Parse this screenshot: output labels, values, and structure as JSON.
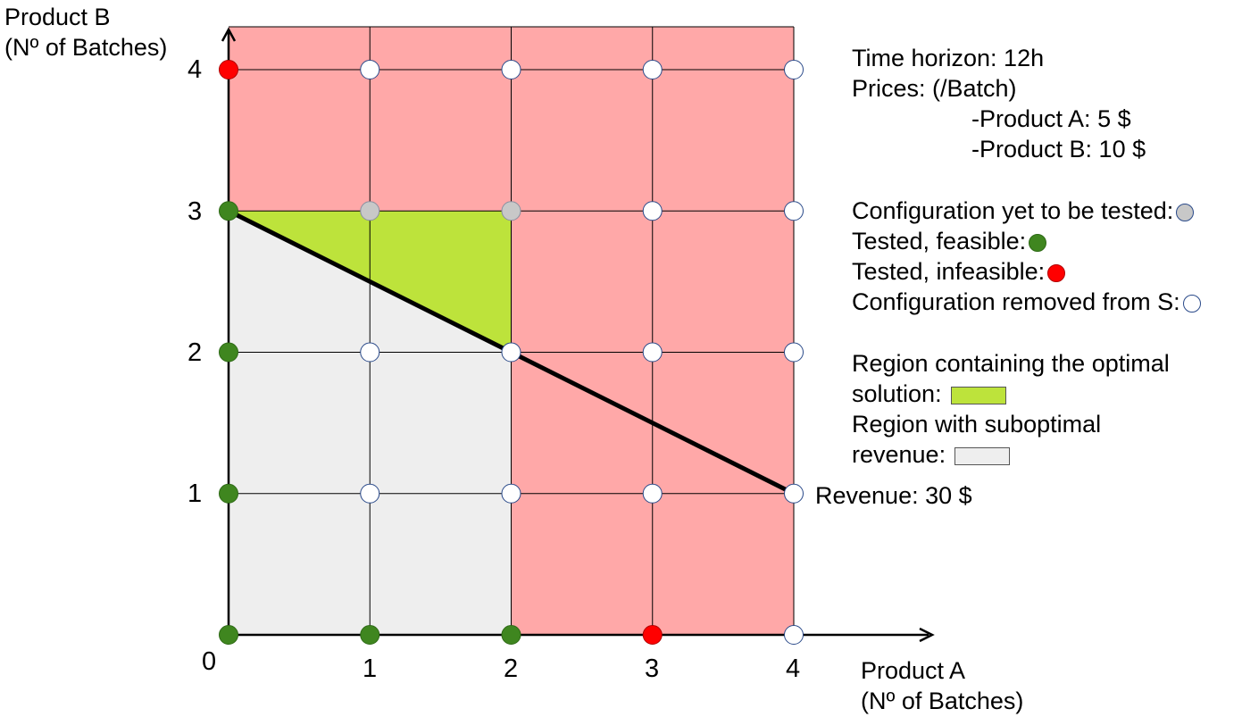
{
  "axes": {
    "y_title_line1": "Product B",
    "y_title_line2": "(Nº of Batches)",
    "x_title_line1": "Product A",
    "x_title_line2": "(Nº of Batches)",
    "x_ticks": [
      "0",
      "1",
      "2",
      "3",
      "4"
    ],
    "y_ticks": [
      "1",
      "2",
      "3",
      "4"
    ]
  },
  "info": {
    "time_horizon": "Time horizon: 12h",
    "prices_title": "Prices: (/Batch)",
    "price_a": "-Product A: 5 $",
    "price_b": "-Product B: 10 $"
  },
  "legend": {
    "untested": "Configuration yet to be tested:",
    "feasible": "Tested, feasible:",
    "infeasible": "Tested, infeasible:",
    "removed": "Configuration removed from S:",
    "optimal_line1": "Region containing the optimal",
    "optimal_line2": "solution:",
    "suboptimal_line1": "Region with suboptimal",
    "suboptimal_line2": "revenue:"
  },
  "revenue_label": "Revenue: 30 $",
  "colors": {
    "infeasible_region": "#ffa8a8",
    "optimal_region": "#bde33b",
    "suboptimal_region": "#eeeeee",
    "feasible_dot": "#3f861f",
    "infeasible_dot": "#ff0000",
    "untested_dot": "#c8c8c8",
    "removed_dot": "#ffffff"
  },
  "grid": {
    "x_max": 4,
    "y_max": 4
  },
  "revenue_line": {
    "from": [
      0,
      3
    ],
    "to": [
      4,
      1
    ]
  },
  "points": [
    {
      "a": 0,
      "b": 0,
      "state": "feasible"
    },
    {
      "a": 1,
      "b": 0,
      "state": "feasible"
    },
    {
      "a": 2,
      "b": 0,
      "state": "feasible"
    },
    {
      "a": 3,
      "b": 0,
      "state": "infeasible"
    },
    {
      "a": 4,
      "b": 0,
      "state": "removed"
    },
    {
      "a": 0,
      "b": 1,
      "state": "feasible"
    },
    {
      "a": 1,
      "b": 1,
      "state": "removed"
    },
    {
      "a": 2,
      "b": 1,
      "state": "removed"
    },
    {
      "a": 3,
      "b": 1,
      "state": "removed"
    },
    {
      "a": 4,
      "b": 1,
      "state": "removed"
    },
    {
      "a": 0,
      "b": 2,
      "state": "feasible"
    },
    {
      "a": 1,
      "b": 2,
      "state": "removed"
    },
    {
      "a": 2,
      "b": 2,
      "state": "removed"
    },
    {
      "a": 3,
      "b": 2,
      "state": "removed"
    },
    {
      "a": 4,
      "b": 2,
      "state": "removed"
    },
    {
      "a": 0,
      "b": 3,
      "state": "feasible"
    },
    {
      "a": 1,
      "b": 3,
      "state": "untested"
    },
    {
      "a": 2,
      "b": 3,
      "state": "untested"
    },
    {
      "a": 3,
      "b": 3,
      "state": "removed"
    },
    {
      "a": 4,
      "b": 3,
      "state": "removed"
    },
    {
      "a": 0,
      "b": 4,
      "state": "infeasible"
    },
    {
      "a": 1,
      "b": 4,
      "state": "removed"
    },
    {
      "a": 2,
      "b": 4,
      "state": "removed"
    },
    {
      "a": 3,
      "b": 4,
      "state": "removed"
    },
    {
      "a": 4,
      "b": 4,
      "state": "removed"
    }
  ]
}
